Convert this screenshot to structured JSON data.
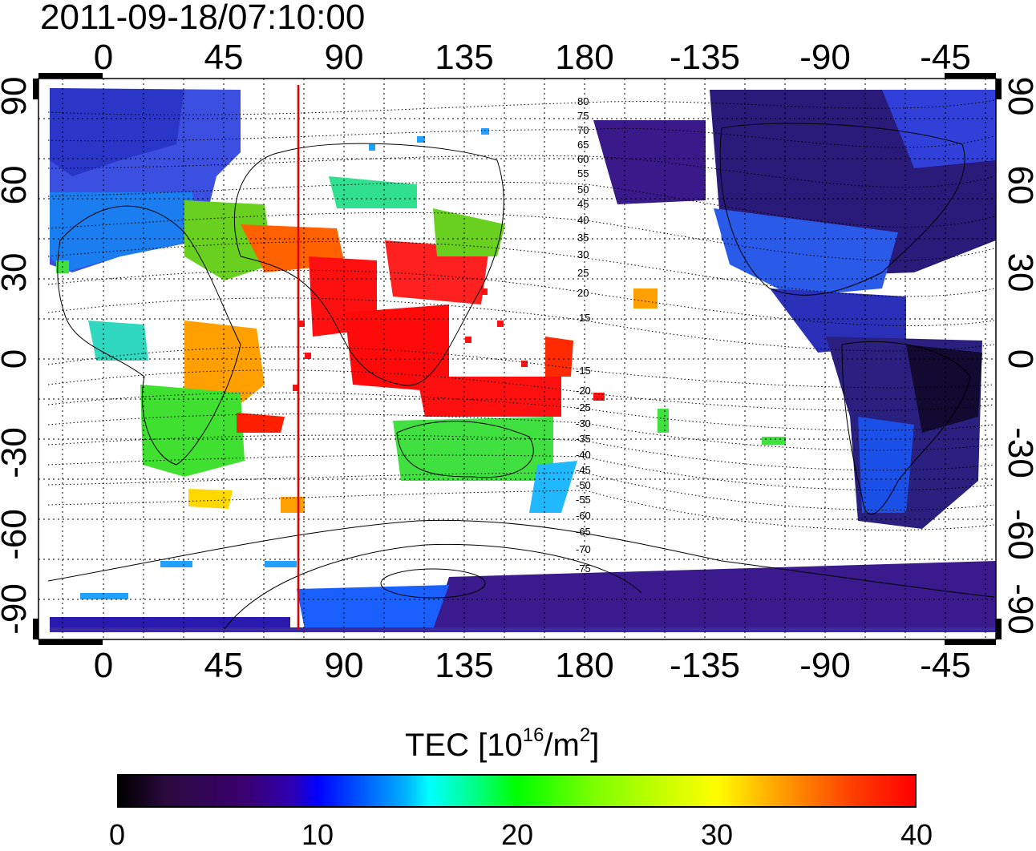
{
  "timestamp": "2011-09-18/07:10:00",
  "map": {
    "top_lon_labels": [
      "0",
      "45",
      "90",
      "135",
      "180",
      "-135",
      "-90",
      "-45"
    ],
    "bottom_lon_labels": [
      "0",
      "45",
      "90",
      "135",
      "180",
      "-135",
      "-90",
      "-45"
    ],
    "left_lat_labels": [
      "90",
      "60",
      "30",
      "0",
      "-30",
      "-60",
      "-90"
    ],
    "right_lat_labels": [
      "90",
      "60",
      "30",
      "0",
      "-30",
      "-60",
      "-90"
    ],
    "contour_labels": [
      "80",
      "75",
      "70",
      "65",
      "60",
      "55",
      "50",
      "45",
      "40",
      "35",
      "30",
      "25",
      "20",
      "15",
      "-15",
      "-20",
      "-25",
      "-30",
      "-35",
      "-40",
      "-45",
      "-50",
      "-55",
      "-60",
      "-65",
      "-70",
      "-75"
    ],
    "marker_line_color": "#e00000",
    "grid": true
  },
  "colorbar": {
    "title": "TEC  [10",
    "title_sup1": "16",
    "title_mid": "/m",
    "title_sup2": "2",
    "title_end": "]",
    "ticks": [
      "0",
      "10",
      "20",
      "30",
      "40"
    ],
    "range": [
      0,
      40
    ],
    "colormap": [
      "#000000",
      "#3a0070",
      "#0000ff",
      "#00ffff",
      "#00ff00",
      "#ffff00",
      "#ff0000"
    ]
  }
}
